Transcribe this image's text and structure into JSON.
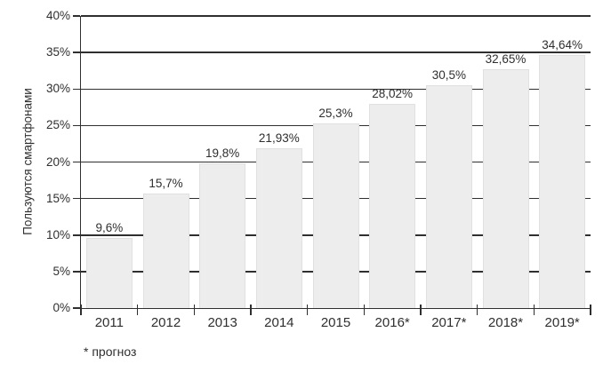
{
  "chart_data": {
    "type": "bar",
    "categories": [
      "2011",
      "2012",
      "2013",
      "2014",
      "2015",
      "2016*",
      "2017*",
      "2018*",
      "2019*"
    ],
    "values": [
      9.6,
      15.7,
      19.8,
      21.93,
      25.3,
      28.02,
      30.5,
      32.65,
      34.64
    ],
    "value_labels": [
      "9,6%",
      "15,7%",
      "19,8%",
      "21,93%",
      "25,3%",
      "28,02%",
      "30,5%",
      "32,65%",
      "34,64%"
    ],
    "title": "",
    "xlabel": "",
    "ylabel": "Пользуются смартфонами",
    "ylim": [
      0,
      40
    ],
    "ytick_step": 5,
    "ytick_labels": [
      "0%",
      "5%",
      "10%",
      "15%",
      "20%",
      "25%",
      "30%",
      "35%",
      "40%"
    ],
    "footnote": "* прогноз",
    "grid": true,
    "legend": "none",
    "colors": {
      "bar_fill": "#ededed",
      "bar_border": "#e0e0e0",
      "line": "#2f2f2f",
      "text": "#2f2f2f",
      "background": "#ffffff"
    }
  }
}
